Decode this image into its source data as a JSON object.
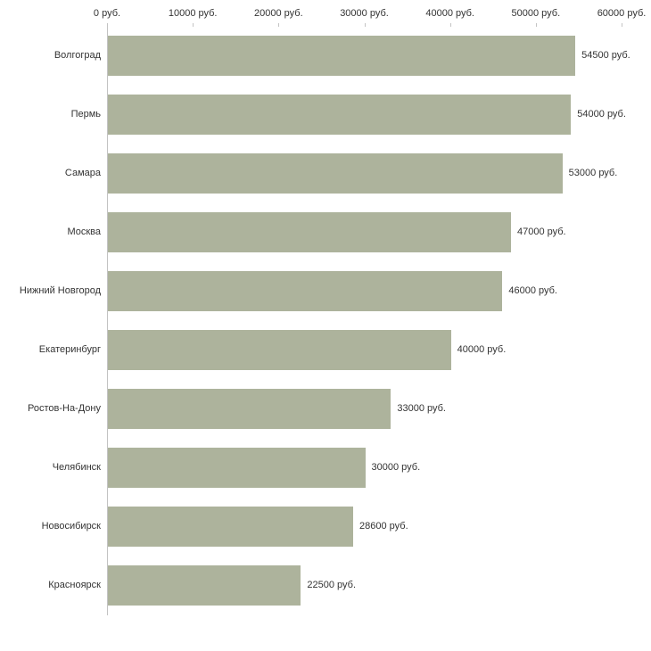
{
  "chart_data": {
    "type": "bar",
    "orientation": "horizontal",
    "title": "",
    "categories": [
      "Волгоград",
      "Пермь",
      "Самара",
      "Москва",
      "Нижний Новгород",
      "Екатеринбург",
      "Ростов-На-Дону",
      "Челябинск",
      "Новосибирск",
      "Красноярск"
    ],
    "values": [
      54500,
      54000,
      53000,
      47000,
      46000,
      40000,
      33000,
      30000,
      28600,
      22500
    ],
    "value_labels": [
      "54500 руб.",
      "54000 руб.",
      "53000 руб.",
      "47000 руб.",
      "46000 руб.",
      "40000 руб.",
      "33000 руб.",
      "30000 руб.",
      "28600 руб.",
      "22500 руб."
    ],
    "x_tick_labels": [
      "0 руб.",
      "10000 руб.",
      "20000 руб.",
      "30000 руб.",
      "40000 руб.",
      "50000 руб.",
      "60000 руб."
    ],
    "x_tick_values": [
      0,
      10000,
      20000,
      30000,
      40000,
      50000,
      60000
    ],
    "xlim": [
      0,
      60000
    ],
    "tick_label_position": "top",
    "grid": false,
    "legend": false,
    "colors": {
      "bar": "#adb39c",
      "text": "#333333",
      "axis": "#c3c3c3",
      "background": "#ffffff"
    }
  }
}
